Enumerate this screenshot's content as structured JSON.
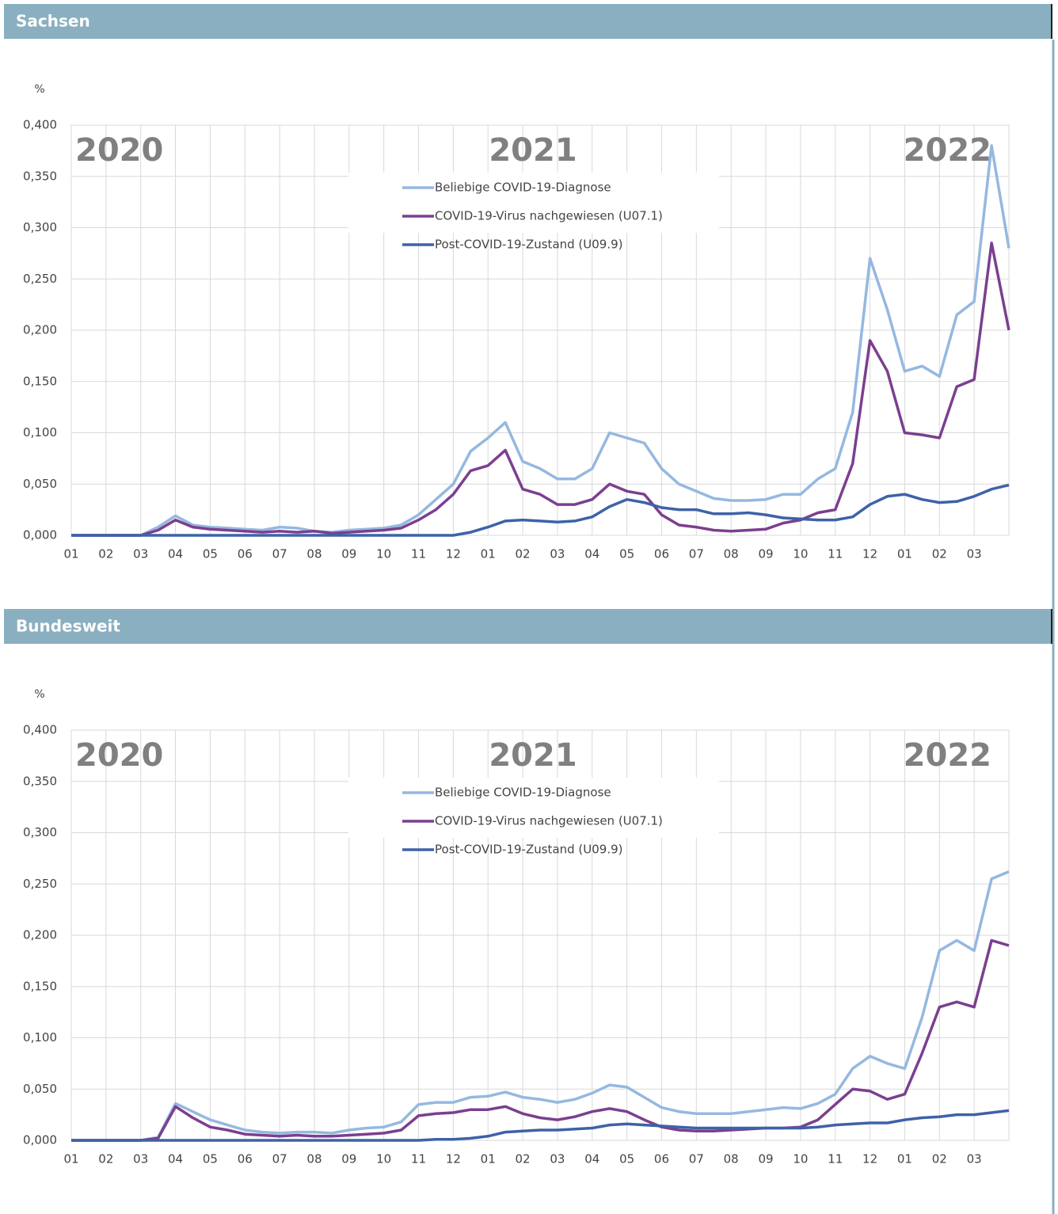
{
  "chart_data": [
    {
      "type": "line",
      "title": "Sachsen",
      "ylabel": "%",
      "annotations": [
        "2020",
        "2021",
        "2022"
      ],
      "legend": "top-center",
      "grid": true,
      "xlim": [
        0,
        27
      ],
      "ylim": [
        0,
        0.4
      ],
      "xticks": [
        {
          "value": 0,
          "label": "01"
        },
        {
          "value": 1,
          "label": "02"
        },
        {
          "value": 2,
          "label": "03"
        },
        {
          "value": 3,
          "label": "04"
        },
        {
          "value": 4,
          "label": "05"
        },
        {
          "value": 5,
          "label": "06"
        },
        {
          "value": 6,
          "label": "07"
        },
        {
          "value": 7,
          "label": "08"
        },
        {
          "value": 8,
          "label": "09"
        },
        {
          "value": 9,
          "label": "10"
        },
        {
          "value": 10,
          "label": "11"
        },
        {
          "value": 11,
          "label": "12"
        },
        {
          "value": 12,
          "label": "01"
        },
        {
          "value": 13,
          "label": "02"
        },
        {
          "value": 14,
          "label": "03"
        },
        {
          "value": 15,
          "label": "04"
        },
        {
          "value": 16,
          "label": "05"
        },
        {
          "value": 17,
          "label": "06"
        },
        {
          "value": 18,
          "label": "07"
        },
        {
          "value": 19,
          "label": "08"
        },
        {
          "value": 20,
          "label": "09"
        },
        {
          "value": 21,
          "label": "10"
        },
        {
          "value": 22,
          "label": "11"
        },
        {
          "value": 23,
          "label": "12"
        },
        {
          "value": 24,
          "label": "01"
        },
        {
          "value": 25,
          "label": "02"
        },
        {
          "value": 26,
          "label": "03"
        }
      ],
      "yticks": [
        {
          "value": 0,
          "label": "0,000"
        },
        {
          "value": 0.05,
          "label": "0,050"
        },
        {
          "value": 0.1,
          "label": "0,100"
        },
        {
          "value": 0.15,
          "label": "0,150"
        },
        {
          "value": 0.2,
          "label": "0,200"
        },
        {
          "value": 0.25,
          "label": "0,250"
        },
        {
          "value": 0.3,
          "label": "0,300"
        },
        {
          "value": 0.35,
          "label": "0,350"
        },
        {
          "value": 0.4,
          "label": "0,400"
        }
      ],
      "x": [
        0,
        0.5,
        1,
        1.5,
        2,
        2.5,
        3,
        3.5,
        4,
        4.5,
        5,
        5.5,
        6,
        6.5,
        7,
        7.5,
        8,
        8.5,
        9,
        9.5,
        10,
        10.5,
        11,
        11.5,
        12,
        12.5,
        13,
        13.5,
        14,
        14.5,
        15,
        15.5,
        16,
        16.5,
        17,
        17.5,
        18,
        18.5,
        19,
        19.5,
        20,
        20.5,
        21,
        21.5,
        22,
        22.5,
        23,
        23.5,
        24,
        24.5,
        25,
        25.5,
        26,
        26.5,
        27
      ],
      "series": [
        {
          "name": "Beliebige COVID-19-Diagnose",
          "color": "#95b8e0",
          "values": [
            0,
            0,
            0,
            0,
            0,
            0.008,
            0.019,
            0.01,
            0.008,
            0.007,
            0.006,
            0.005,
            0.008,
            0.007,
            0.004,
            0.003,
            0.005,
            0.006,
            0.007,
            0.01,
            0.02,
            0.035,
            0.05,
            0.082,
            0.095,
            0.11,
            0.072,
            0.065,
            0.055,
            0.055,
            0.065,
            0.1,
            0.095,
            0.09,
            0.065,
            0.05,
            0.043,
            0.036,
            0.034,
            0.034,
            0.035,
            0.04,
            0.04,
            0.055,
            0.065,
            0.12,
            0.27,
            0.22,
            0.16,
            0.165,
            0.155,
            0.215,
            0.228,
            0.38,
            0.28
          ]
        },
        {
          "name": "COVID-19-Virus nachgewiesen (U07.1)",
          "color": "#7b3f8f",
          "values": [
            0,
            0,
            0,
            0,
            0,
            0.005,
            0.015,
            0.008,
            0.006,
            0.005,
            0.004,
            0.003,
            0.004,
            0.003,
            0.004,
            0.002,
            0.003,
            0.004,
            0.005,
            0.007,
            0.015,
            0.025,
            0.04,
            0.063,
            0.068,
            0.083,
            0.045,
            0.04,
            0.03,
            0.03,
            0.035,
            0.05,
            0.043,
            0.04,
            0.02,
            0.01,
            0.008,
            0.005,
            0.004,
            0.005,
            0.006,
            0.012,
            0.015,
            0.022,
            0.025,
            0.07,
            0.19,
            0.16,
            0.1,
            0.098,
            0.095,
            0.145,
            0.152,
            0.285,
            0.2
          ]
        },
        {
          "name": "Post-COVID-19-Zustand (U09.9)",
          "color": "#3d62a8",
          "values": [
            0,
            0,
            0,
            0,
            0,
            0,
            0,
            0,
            0,
            0,
            0,
            0,
            0,
            0,
            0,
            0,
            0,
            0,
            0,
            0,
            0,
            0,
            0,
            0.003,
            0.008,
            0.014,
            0.015,
            0.014,
            0.013,
            0.014,
            0.018,
            0.028,
            0.035,
            0.032,
            0.027,
            0.025,
            0.025,
            0.021,
            0.021,
            0.022,
            0.02,
            0.017,
            0.016,
            0.015,
            0.015,
            0.018,
            0.03,
            0.038,
            0.04,
            0.035,
            0.032,
            0.033,
            0.038,
            0.045,
            0.049
          ]
        }
      ]
    },
    {
      "type": "line",
      "title": "Bundesweit",
      "ylabel": "%",
      "annotations": [
        "2020",
        "2021",
        "2022"
      ],
      "legend": "top-center",
      "grid": true,
      "xlim": [
        0,
        27
      ],
      "ylim": [
        0,
        0.4
      ],
      "xticks": [
        {
          "value": 0,
          "label": "01"
        },
        {
          "value": 1,
          "label": "02"
        },
        {
          "value": 2,
          "label": "03"
        },
        {
          "value": 3,
          "label": "04"
        },
        {
          "value": 4,
          "label": "05"
        },
        {
          "value": 5,
          "label": "06"
        },
        {
          "value": 6,
          "label": "07"
        },
        {
          "value": 7,
          "label": "08"
        },
        {
          "value": 8,
          "label": "09"
        },
        {
          "value": 9,
          "label": "10"
        },
        {
          "value": 10,
          "label": "11"
        },
        {
          "value": 11,
          "label": "12"
        },
        {
          "value": 12,
          "label": "01"
        },
        {
          "value": 13,
          "label": "02"
        },
        {
          "value": 14,
          "label": "03"
        },
        {
          "value": 15,
          "label": "04"
        },
        {
          "value": 16,
          "label": "05"
        },
        {
          "value": 17,
          "label": "06"
        },
        {
          "value": 18,
          "label": "07"
        },
        {
          "value": 19,
          "label": "08"
        },
        {
          "value": 20,
          "label": "09"
        },
        {
          "value": 21,
          "label": "10"
        },
        {
          "value": 22,
          "label": "11"
        },
        {
          "value": 23,
          "label": "12"
        },
        {
          "value": 24,
          "label": "01"
        },
        {
          "value": 25,
          "label": "02"
        },
        {
          "value": 26,
          "label": "03"
        }
      ],
      "yticks": [
        {
          "value": 0,
          "label": "0,000"
        },
        {
          "value": 0.05,
          "label": "0,050"
        },
        {
          "value": 0.1,
          "label": "0,100"
        },
        {
          "value": 0.15,
          "label": "0,150"
        },
        {
          "value": 0.2,
          "label": "0,200"
        },
        {
          "value": 0.25,
          "label": "0,250"
        },
        {
          "value": 0.3,
          "label": "0,300"
        },
        {
          "value": 0.35,
          "label": "0,350"
        },
        {
          "value": 0.4,
          "label": "0,400"
        }
      ],
      "x": [
        0,
        0.5,
        1,
        1.5,
        2,
        2.5,
        3,
        3.5,
        4,
        4.5,
        5,
        5.5,
        6,
        6.5,
        7,
        7.5,
        8,
        8.5,
        9,
        9.5,
        10,
        10.5,
        11,
        11.5,
        12,
        12.5,
        13,
        13.5,
        14,
        14.5,
        15,
        15.5,
        16,
        16.5,
        17,
        17.5,
        18,
        18.5,
        19,
        19.5,
        20,
        20.5,
        21,
        21.5,
        22,
        22.5,
        23,
        23.5,
        24,
        24.5,
        25,
        25.5,
        26,
        26.5,
        27
      ],
      "series": [
        {
          "name": "Beliebige COVID-19-Diagnose",
          "color": "#95b8e0",
          "values": [
            0,
            0,
            0,
            0,
            0,
            0.003,
            0.036,
            0.028,
            0.02,
            0.015,
            0.01,
            0.008,
            0.007,
            0.008,
            0.008,
            0.007,
            0.01,
            0.012,
            0.013,
            0.018,
            0.035,
            0.037,
            0.037,
            0.042,
            0.043,
            0.047,
            0.042,
            0.04,
            0.037,
            0.04,
            0.046,
            0.054,
            0.052,
            0.042,
            0.032,
            0.028,
            0.026,
            0.026,
            0.026,
            0.028,
            0.03,
            0.032,
            0.031,
            0.036,
            0.045,
            0.07,
            0.082,
            0.075,
            0.07,
            0.12,
            0.185,
            0.195,
            0.185,
            0.255,
            0.262
          ]
        },
        {
          "name": "COVID-19-Virus nachgewiesen (U07.1)",
          "color": "#7b3f8f",
          "values": [
            0,
            0,
            0,
            0,
            0,
            0.002,
            0.033,
            0.022,
            0.013,
            0.01,
            0.006,
            0.005,
            0.004,
            0.005,
            0.004,
            0.004,
            0.005,
            0.006,
            0.007,
            0.01,
            0.024,
            0.026,
            0.027,
            0.03,
            0.03,
            0.033,
            0.026,
            0.022,
            0.02,
            0.023,
            0.028,
            0.031,
            0.028,
            0.02,
            0.013,
            0.01,
            0.009,
            0.009,
            0.01,
            0.011,
            0.012,
            0.012,
            0.013,
            0.02,
            0.035,
            0.05,
            0.048,
            0.04,
            0.045,
            0.085,
            0.13,
            0.135,
            0.13,
            0.195,
            0.19
          ]
        },
        {
          "name": "Post-COVID-19-Zustand (U09.9)",
          "color": "#3d62a8",
          "values": [
            0,
            0,
            0,
            0,
            0,
            0,
            0,
            0,
            0,
            0,
            0,
            0,
            0,
            0,
            0,
            0,
            0,
            0,
            0,
            0,
            0,
            0.001,
            0.001,
            0.002,
            0.004,
            0.008,
            0.009,
            0.01,
            0.01,
            0.011,
            0.012,
            0.015,
            0.016,
            0.015,
            0.014,
            0.013,
            0.012,
            0.012,
            0.012,
            0.012,
            0.012,
            0.012,
            0.012,
            0.013,
            0.015,
            0.016,
            0.017,
            0.017,
            0.02,
            0.022,
            0.023,
            0.025,
            0.025,
            0.027,
            0.029
          ]
        }
      ]
    }
  ]
}
